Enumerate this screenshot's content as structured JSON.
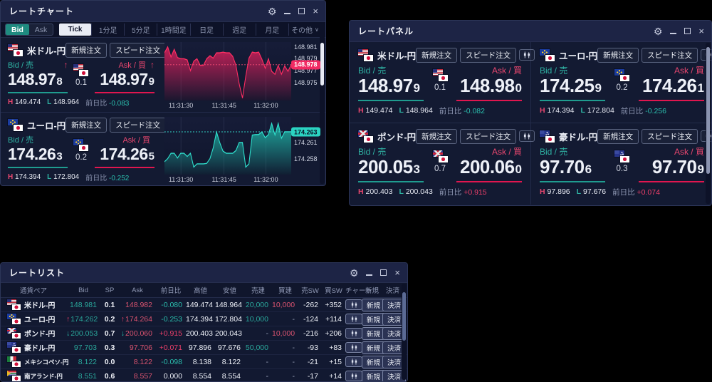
{
  "window_controls": {
    "gear": "⚙",
    "close": "×"
  },
  "chart_window": {
    "title": "レートチャート",
    "side_toggle": {
      "bid": "Bid",
      "ask": "Ask"
    },
    "tabs": [
      "Tick",
      "1分足",
      "5分足",
      "1時間足",
      "日足",
      "週足",
      "月足",
      "その他"
    ],
    "more_chevron": "∨",
    "labels": {
      "bid": "Bid / 売",
      "ask": "Ask / 買",
      "high": "H",
      "low": "L",
      "change": "前日比",
      "new_order": "新規注文",
      "speed_order": "スピード注文"
    },
    "pairs": [
      {
        "name": "米ドル-円",
        "flag": "us",
        "bid_main": "148.97",
        "bid_pip": "8",
        "bid_arrow": "↑",
        "spread": "0.1",
        "ask_main": "148.97",
        "ask_pip": "9",
        "ask_arrow": "↑",
        "high": "149.474",
        "low": "148.964",
        "change": "-0.083"
      },
      {
        "name": "ユーロ-円",
        "flag": "eu",
        "bid_main": "174.26",
        "bid_pip": "3",
        "bid_arrow": "",
        "spread": "0.2",
        "ask_main": "174.26",
        "ask_pip": "5",
        "ask_arrow": "",
        "high": "174.394",
        "low": "172.804",
        "change": "-0.252"
      }
    ]
  },
  "panel_window": {
    "title": "レートパネル",
    "labels": {
      "bid": "Bid / 売",
      "ask": "Ask / 買",
      "high": "H",
      "low": "L",
      "change": "前日比",
      "new_order": "新規注文",
      "speed_order": "スピード注文"
    },
    "panels": [
      {
        "name": "米ドル-円",
        "flag": "us",
        "bid_main": "148.97",
        "bid_pip": "9",
        "spread": "0.1",
        "ask_main": "148.98",
        "ask_pip": "0",
        "high": "149.474",
        "low": "148.964",
        "change": "-0.082"
      },
      {
        "name": "ユーロ-円",
        "flag": "eu",
        "bid_main": "174.25",
        "bid_pip": "9",
        "spread": "0.2",
        "ask_main": "174.26",
        "ask_pip": "1",
        "high": "174.394",
        "low": "172.804",
        "change": "-0.256"
      },
      {
        "name": "ポンド-円",
        "flag": "gb",
        "bid_main": "200.05",
        "bid_pip": "3",
        "spread": "0.7",
        "ask_main": "200.06",
        "ask_pip": "0",
        "high": "200.403",
        "low": "200.043",
        "change": "+0.915"
      },
      {
        "name": "豪ドル-円",
        "flag": "au",
        "bid_main": "97.70",
        "bid_pip": "6",
        "spread": "0.3",
        "ask_main": "97.70",
        "ask_pip": "9",
        "high": "97.896",
        "low": "97.676",
        "change": "+0.074"
      }
    ]
  },
  "list_window": {
    "title": "レートリスト",
    "columns": [
      "通貨ペア",
      "Bid",
      "SP",
      "Ask",
      "前日比",
      "高値",
      "安値",
      "売建",
      "買建",
      "売SW",
      "買SW",
      "チャート",
      "新規",
      "決済"
    ],
    "buttons": {
      "new": "新規",
      "close": "決済"
    },
    "rows": [
      {
        "pair": "米ドル-円",
        "flag": "us",
        "bid_arrow": "",
        "bid": "148.981",
        "sp": "0.1",
        "ask_arrow": "",
        "ask": "148.982",
        "change": "-0.080",
        "high": "149.474",
        "low": "148.964",
        "sell_pos": "20,000",
        "buy_pos": "10,000",
        "sell_sw": "-262",
        "buy_sw": "+352"
      },
      {
        "pair": "ユーロ-円",
        "flag": "eu",
        "bid_arrow": "↑",
        "bid": "174.262",
        "sp": "0.2",
        "ask_arrow": "↑",
        "ask": "174.264",
        "change": "-0.253",
        "high": "174.394",
        "low": "172.804",
        "sell_pos": "10,000",
        "buy_pos": "-",
        "sell_sw": "-124",
        "buy_sw": "+114"
      },
      {
        "pair": "ポンド-円",
        "flag": "gb",
        "bid_arrow": "↓",
        "bid": "200.053",
        "sp": "0.7",
        "ask_arrow": "↓",
        "ask": "200.060",
        "change": "+0.915",
        "high": "200.403",
        "low": "200.043",
        "sell_pos": "-",
        "buy_pos": "10,000",
        "sell_sw": "-216",
        "buy_sw": "+206"
      },
      {
        "pair": "豪ドル-円",
        "flag": "au",
        "bid_arrow": "",
        "bid": "97.703",
        "sp": "0.3",
        "ask_arrow": "",
        "ask": "97.706",
        "change": "+0.071",
        "high": "97.896",
        "low": "97.676",
        "sell_pos": "50,000",
        "buy_pos": "-",
        "sell_sw": "-93",
        "buy_sw": "+83"
      },
      {
        "pair": "メキシコペソ-円",
        "flag": "mx",
        "bid_arrow": "",
        "bid": "8.122",
        "sp": "0.0",
        "ask_arrow": "",
        "ask": "8.122",
        "change": "-0.098",
        "high": "8.138",
        "low": "8.122",
        "sell_pos": "-",
        "buy_pos": "-",
        "sell_sw": "-21",
        "buy_sw": "+15"
      },
      {
        "pair": "南アランド-円",
        "flag": "za",
        "bid_arrow": "",
        "bid": "8.551",
        "sp": "0.6",
        "ask_arrow": "",
        "ask": "8.557",
        "change": "0.000",
        "high": "8.554",
        "low": "8.554",
        "sell_pos": "-",
        "buy_pos": "-",
        "sell_sw": "-17",
        "buy_sw": "+14"
      }
    ]
  },
  "chart_data": [
    {
      "type": "area",
      "pair": "米ドル-円",
      "line_color": "#ff2e63",
      "fill_color": "#e0205c",
      "badge_bg": "#f02a63",
      "badge_fg": "#ffffff",
      "dotted_color": "#ff4d78",
      "ymin": 148.972,
      "ymax": 148.9818,
      "y_ticks": [
        148.981,
        148.979,
        148.977,
        148.975
      ],
      "current": 148.978,
      "current_label": "148.978",
      "x_ticks": [
        {
          "pos": 0.13,
          "label": "11:31:30"
        },
        {
          "pos": 0.47,
          "label": "11:31:45"
        },
        {
          "pos": 0.8,
          "label": "11:32:00"
        }
      ],
      "values": [
        148.98,
        148.981,
        148.9793,
        148.9806,
        148.9792,
        148.979,
        148.979,
        148.9788,
        148.977,
        148.9786,
        148.979,
        148.9779,
        148.9779,
        148.979,
        148.9795,
        148.9791,
        148.98,
        148.98,
        148.9801,
        148.98,
        148.98,
        148.9794,
        148.9779,
        148.9748,
        148.9724,
        148.976,
        148.9791,
        148.9801,
        148.98,
        148.9801,
        148.9789,
        148.9774,
        148.979,
        148.9769,
        148.9764,
        148.9779,
        148.9764,
        148.9778,
        148.9769,
        148.978
      ]
    },
    {
      "type": "area",
      "pair": "ユーロ-円",
      "line_color": "#2fe0cd",
      "fill_color": "#1fbcab",
      "badge_bg": "#2bd4c2",
      "badge_fg": "#0a1228",
      "dotted_color": "#35e2cf",
      "ymin": 174.255,
      "ymax": 174.2658,
      "y_ticks": [
        174.261,
        174.258
      ],
      "current": 174.263,
      "current_label": "174.263",
      "x_ticks": [
        {
          "pos": 0.13,
          "label": "11:31:30"
        },
        {
          "pos": 0.47,
          "label": "11:31:45"
        },
        {
          "pos": 0.8,
          "label": "11:32:00"
        }
      ],
      "values": [
        174.2574,
        174.258,
        174.259,
        174.259,
        174.2581,
        174.259,
        174.259,
        174.2584,
        174.259,
        174.2564,
        174.257,
        174.257,
        174.257,
        174.2571,
        174.258,
        174.26,
        174.263,
        174.261,
        174.2594,
        174.259,
        174.259,
        174.259,
        174.2595,
        174.261,
        174.261,
        174.2564,
        174.257,
        174.2624,
        174.2625,
        174.2625,
        174.263,
        174.2619,
        174.2625,
        174.2646,
        174.2624,
        174.2646,
        174.2618,
        174.263,
        174.263,
        174.263
      ]
    }
  ]
}
